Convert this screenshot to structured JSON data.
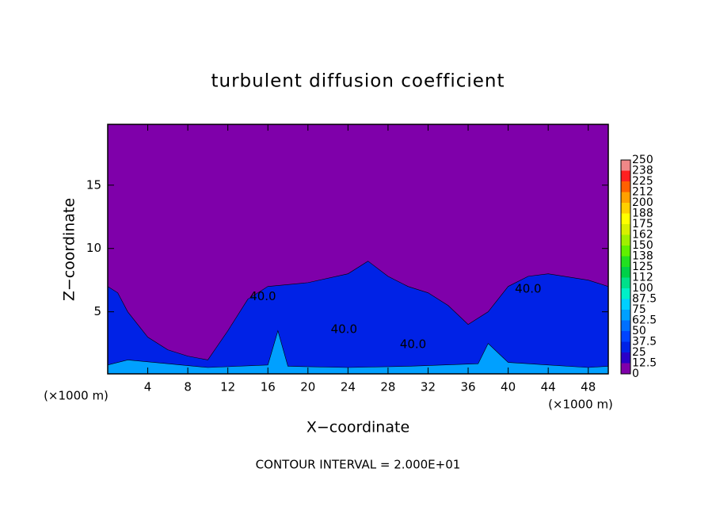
{
  "chart_data": {
    "type": "contour",
    "title": "turbulent diffusion coefficient",
    "x_label": "X−coordinate",
    "y_label": "Z−coordinate",
    "x_unit": "(×1000 m)",
    "y_unit": "(×1000 m)",
    "footer": "CONTOUR INTERVAL = 2.000E+01",
    "xlim": [
      0,
      50
    ],
    "ylim": [
      0.1,
      19.8
    ],
    "xticks": [
      4,
      8,
      12,
      16,
      20,
      24,
      28,
      32,
      36,
      40,
      44,
      48
    ],
    "yticks": [
      5,
      10,
      15
    ],
    "levels": [
      0,
      12.5,
      25,
      37.5,
      50,
      62.5,
      75,
      87.5,
      100,
      {
        "value": 112.5,
        "label": "112"
      },
      125,
      {
        "value": 137.5,
        "label": "138"
      },
      150,
      {
        "value": 162.5,
        "label": "162"
      },
      175,
      {
        "value": 187.5,
        "label": "188"
      },
      200,
      {
        "value": 212.5,
        "label": "212"
      },
      225,
      {
        "value": 237.5,
        "label": "238"
      },
      250
    ],
    "colors": [
      "#7f00aa",
      "#2a00c8",
      "#0022e6",
      "#0044ff",
      "#0070ff",
      "#00a0ff",
      "#00d0ff",
      "#00f0c8",
      "#00e08a",
      "#00d048",
      "#22e020",
      "#60f000",
      "#a0f000",
      "#d8f000",
      "#ffff00",
      "#ffd000",
      "#ffa000",
      "#ff6000",
      "#ff2020",
      "#f08888"
    ],
    "regions": [
      {
        "level": 25,
        "x": [
          0,
          1,
          2,
          4,
          6,
          8,
          10,
          12,
          14,
          16,
          20,
          24,
          26,
          28,
          30,
          32,
          34,
          36,
          38,
          40,
          42,
          44,
          48,
          50
        ],
        "z": [
          7,
          6.5,
          5,
          3,
          2,
          1.5,
          1.2,
          3.5,
          6,
          7,
          7.3,
          8,
          9,
          7.8,
          7,
          6.5,
          5.5,
          4,
          5,
          7,
          7.8,
          8,
          7.5,
          7
        ]
      },
      {
        "level": 62.5,
        "x": [
          0,
          2,
          6,
          10,
          16,
          17,
          18,
          24,
          30,
          37,
          38,
          40,
          44,
          48,
          50
        ],
        "z": [
          0.8,
          1.2,
          0.9,
          0.6,
          0.8,
          3.5,
          0.7,
          0.6,
          0.7,
          0.9,
          2.5,
          1,
          0.8,
          0.6,
          0.7
        ]
      }
    ],
    "contour_labels": [
      {
        "value": 40,
        "label": "40.0",
        "x": 15.5,
        "y": 6.2
      },
      {
        "value": 40,
        "label": "40.0",
        "x": 23.6,
        "y": 3.6
      },
      {
        "value": 40,
        "label": "40.0",
        "x": 30.5,
        "y": 2.4
      },
      {
        "value": 40,
        "label": "40.0",
        "x": 42,
        "y": 6.8
      }
    ]
  }
}
